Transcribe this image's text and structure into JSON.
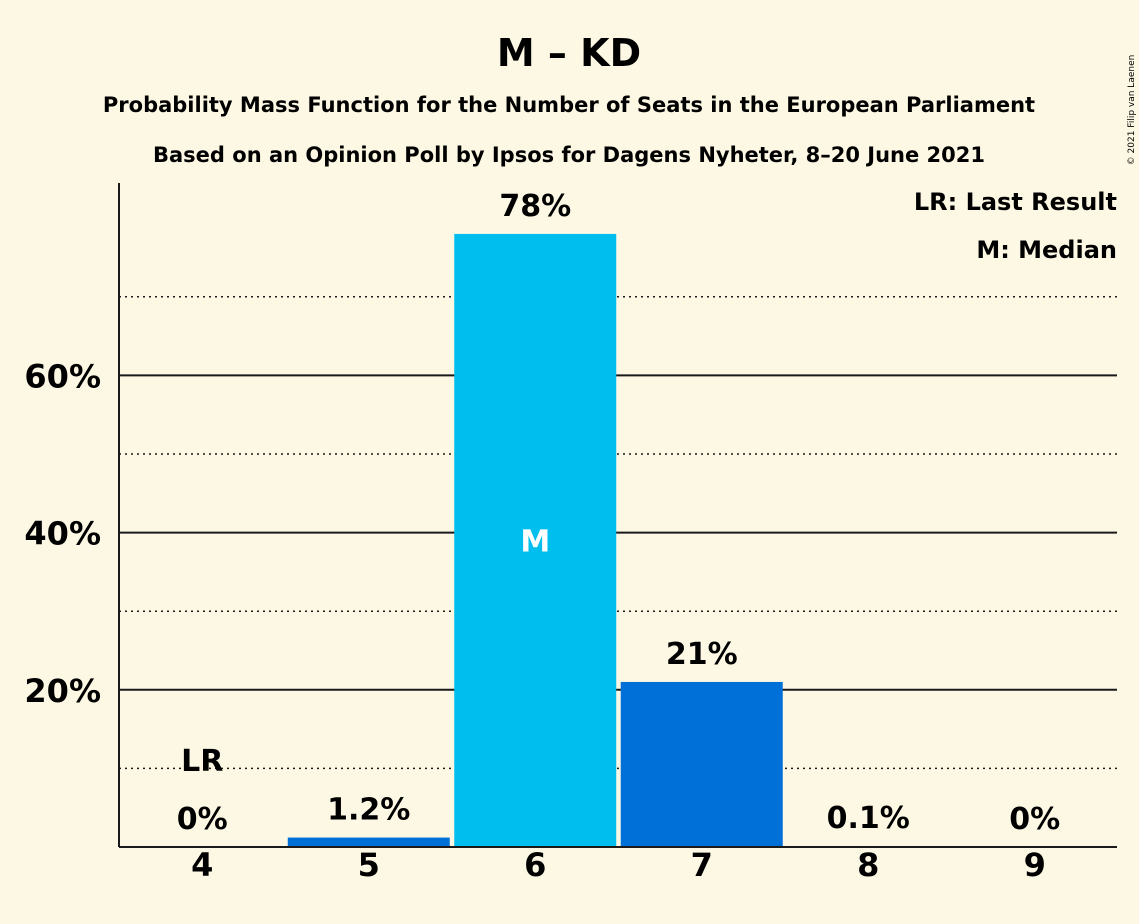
{
  "chart_data": {
    "type": "bar",
    "title": "M – KD",
    "subtitle": [
      "Probability Mass Function for the Number of Seats in the European Parliament",
      "Based on an Opinion Poll by Ipsos for Dagens Nyheter, 8–20 June 2021"
    ],
    "categories": [
      "4",
      "5",
      "6",
      "7",
      "8",
      "9"
    ],
    "values": [
      0,
      1.2,
      78,
      21,
      0.1,
      0
    ],
    "labels": [
      "0%",
      "1.2%",
      "78%",
      "21%",
      "0.1%",
      "0%"
    ],
    "ylim": [
      0,
      85
    ],
    "yticks": [
      20,
      40,
      60
    ],
    "ytick_labels": [
      "20%",
      "40%",
      "60%"
    ],
    "minor_gridlines": [
      10,
      30,
      50,
      70
    ],
    "last_result_index": 0,
    "last_result_mark": "LR",
    "median_index": 2,
    "median_mark": "M",
    "legend": [
      "LR: Last Result",
      "M: Median"
    ],
    "legend_position": "top-right",
    "colors": {
      "median_bar": "#00bfef",
      "bar": "#0070d9",
      "background": "#fdf8e4"
    }
  },
  "copyright": "© 2021 Filip van Laenen"
}
